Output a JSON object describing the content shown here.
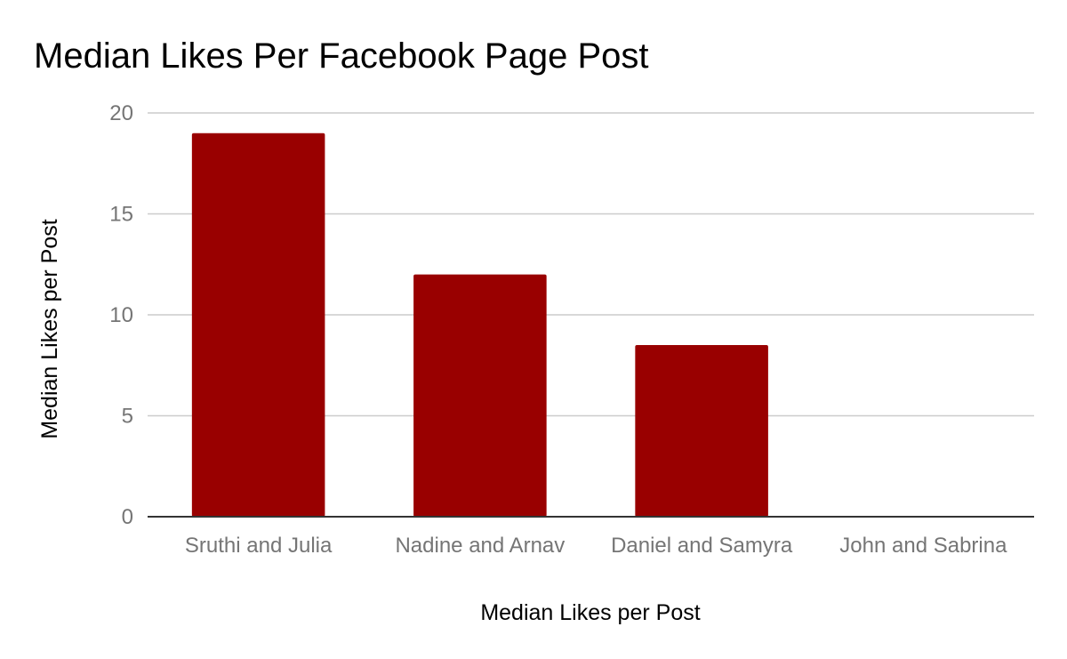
{
  "chart_data": {
    "type": "bar",
    "title": "Median Likes Per Facebook Page Post",
    "xlabel": "Median Likes per Post",
    "ylabel": "Median Likes per Post",
    "categories": [
      "Sruthi and Julia",
      "Nadine and Arnav",
      "Daniel and Samyra",
      "John and Sabrina"
    ],
    "series": [
      {
        "values": [
          19,
          12,
          8.5,
          0
        ],
        "color": "#990000"
      }
    ],
    "ylim": [
      0,
      20
    ],
    "yticks": [
      "0",
      "5",
      "10",
      "15",
      "20"
    ],
    "grid": true,
    "legend": "none"
  }
}
